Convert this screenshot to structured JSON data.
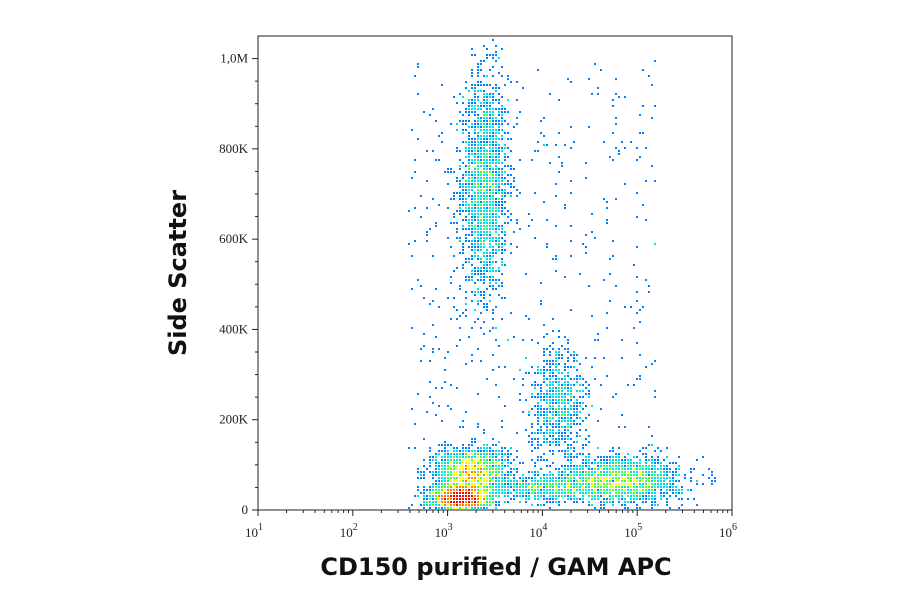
{
  "chart_data": {
    "type": "scatter",
    "subtype": "flow-cytometry-density-dot-plot",
    "xlabel": "CD150 purified / GAM APC",
    "ylabel": "Side Scatter",
    "x_scale": "log",
    "xlim": [
      10,
      1000000
    ],
    "ylim": [
      0,
      1050000
    ],
    "x_ticks": [
      {
        "value": 10,
        "base": "10",
        "exp": "1"
      },
      {
        "value": 100,
        "base": "10",
        "exp": "2"
      },
      {
        "value": 1000,
        "base": "10",
        "exp": "3"
      },
      {
        "value": 10000,
        "base": "10",
        "exp": "4"
      },
      {
        "value": 100000,
        "base": "10",
        "exp": "5"
      },
      {
        "value": 1000000,
        "base": "10",
        "exp": "6"
      }
    ],
    "y_ticks": [
      {
        "value": 0,
        "label": "0"
      },
      {
        "value": 200000,
        "label": "200K"
      },
      {
        "value": 400000,
        "label": "400K"
      },
      {
        "value": 600000,
        "label": "600K"
      },
      {
        "value": 800000,
        "label": "800K"
      },
      {
        "value": 1000000,
        "label": "1,0M"
      }
    ],
    "grid": false,
    "legend": "none",
    "colormap": [
      "#0000d0",
      "#0080ff",
      "#00e0e0",
      "#40ff40",
      "#ffff00",
      "#ff8000",
      "#ff0000"
    ],
    "populations": [
      {
        "x_center": 2500,
        "y_center": 720000,
        "x_spread_decades": 0.12,
        "y_spread": 120000,
        "density": "high"
      },
      {
        "x_center": 1400,
        "y_center": 25000,
        "x_spread_decades": 0.15,
        "y_spread": 15000,
        "density": "very-high"
      },
      {
        "x_center": 1800,
        "y_center": 85000,
        "x_spread_decades": 0.18,
        "y_spread": 25000,
        "density": "high"
      },
      {
        "x_center": 70000,
        "y_center": 65000,
        "x_spread_decades": 0.3,
        "y_spread": 25000,
        "density": "high"
      },
      {
        "x_center": 15000,
        "y_center": 230000,
        "x_spread_decades": 0.15,
        "y_spread": 60000,
        "density": "medium"
      },
      {
        "x_center": 12000,
        "y_center": 50000,
        "x_spread_decades": 0.3,
        "y_spread": 15000,
        "density": "medium"
      }
    ]
  }
}
